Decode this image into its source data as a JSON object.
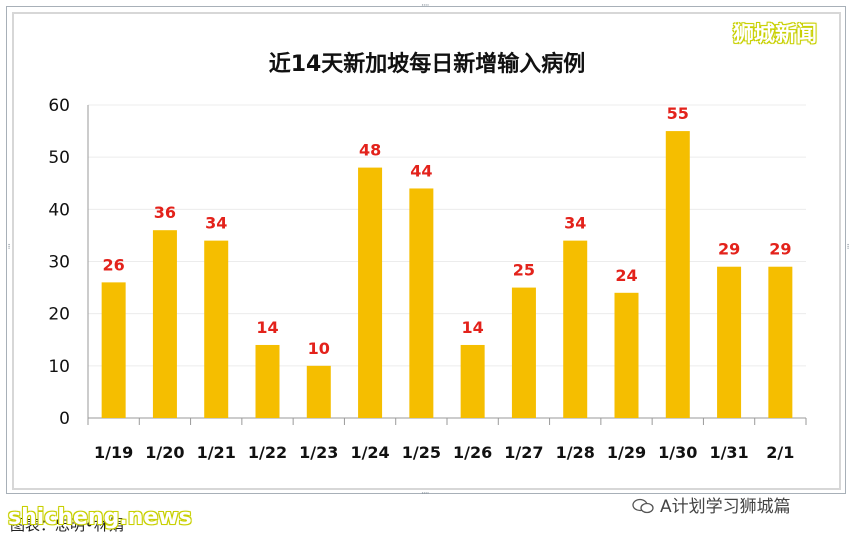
{
  "chart_data": {
    "type": "bar",
    "title": "近14天新加坡每日新增输入病例",
    "categories": [
      "1/19",
      "1/20",
      "1/21",
      "1/22",
      "1/23",
      "1/24",
      "1/25",
      "1/26",
      "1/27",
      "1/28",
      "1/29",
      "1/30",
      "1/31",
      "2/1"
    ],
    "values": [
      26,
      36,
      34,
      14,
      10,
      48,
      44,
      14,
      25,
      34,
      24,
      55,
      29,
      29
    ],
    "ylim": [
      0,
      60
    ],
    "yticks": [
      0,
      10,
      20,
      30,
      40,
      50,
      60
    ],
    "grid": true,
    "bar_color": "#f5be00",
    "label_color": "#e3221b"
  },
  "watermark_top": "狮城新闻",
  "watermark_site": "shicheng.news",
  "source": "图表：忠明•林娟",
  "account": "A计划学习狮城篇"
}
